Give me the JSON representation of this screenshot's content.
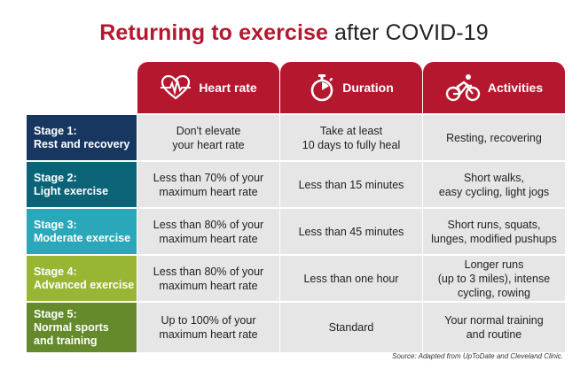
{
  "title": {
    "bold": "Returning to exercise",
    "rest": " after COVID-19"
  },
  "headers": [
    {
      "label": "Heart rate",
      "icon": "heart-rate-icon"
    },
    {
      "label": "Duration",
      "icon": "stopwatch-icon"
    },
    {
      "label": "Activities",
      "icon": "cyclist-icon"
    }
  ],
  "rows": [
    {
      "stage": "Stage 1:",
      "name": "Rest and recovery",
      "heart": "Don't elevate\nyour heart rate",
      "duration": "Take at least\n10 days to fully heal",
      "activities": "Resting, recovering"
    },
    {
      "stage": "Stage 2:",
      "name": "Light exercise",
      "heart": "Less than 70% of your\nmaximum heart rate",
      "duration": "Less than 15 minutes",
      "activities": "Short walks,\neasy cycling, light jogs"
    },
    {
      "stage": "Stage 3:",
      "name": "Moderate exercise",
      "heart": "Less than 80% of your\nmaximum heart rate",
      "duration": "Less than 45 minutes",
      "activities": "Short runs, squats,\nlunges, modified pushups"
    },
    {
      "stage": "Stage 4:",
      "name": "Advanced exercise",
      "heart": "Less than 80% of your\nmaximum heart rate",
      "duration": "Less than one hour",
      "activities": "Longer runs\n(up to 3 miles), intense\ncycling, rowing"
    },
    {
      "stage": "Stage 5:",
      "name": "Normal sports\nand training",
      "heart": "Up to 100% of your\nmaximum heart rate",
      "duration": "Standard",
      "activities": "Your normal training\nand routine"
    }
  ],
  "source": "Source: Adapted from UpToDate and Cleveland Clinic.",
  "colors": {
    "accent": "#b5172f",
    "stage1": "#173761",
    "stage2": "#0b6378",
    "stage3": "#2aa7b8",
    "stage4": "#99b534",
    "stage5": "#648a2b",
    "cell": "#e6e6e6"
  }
}
